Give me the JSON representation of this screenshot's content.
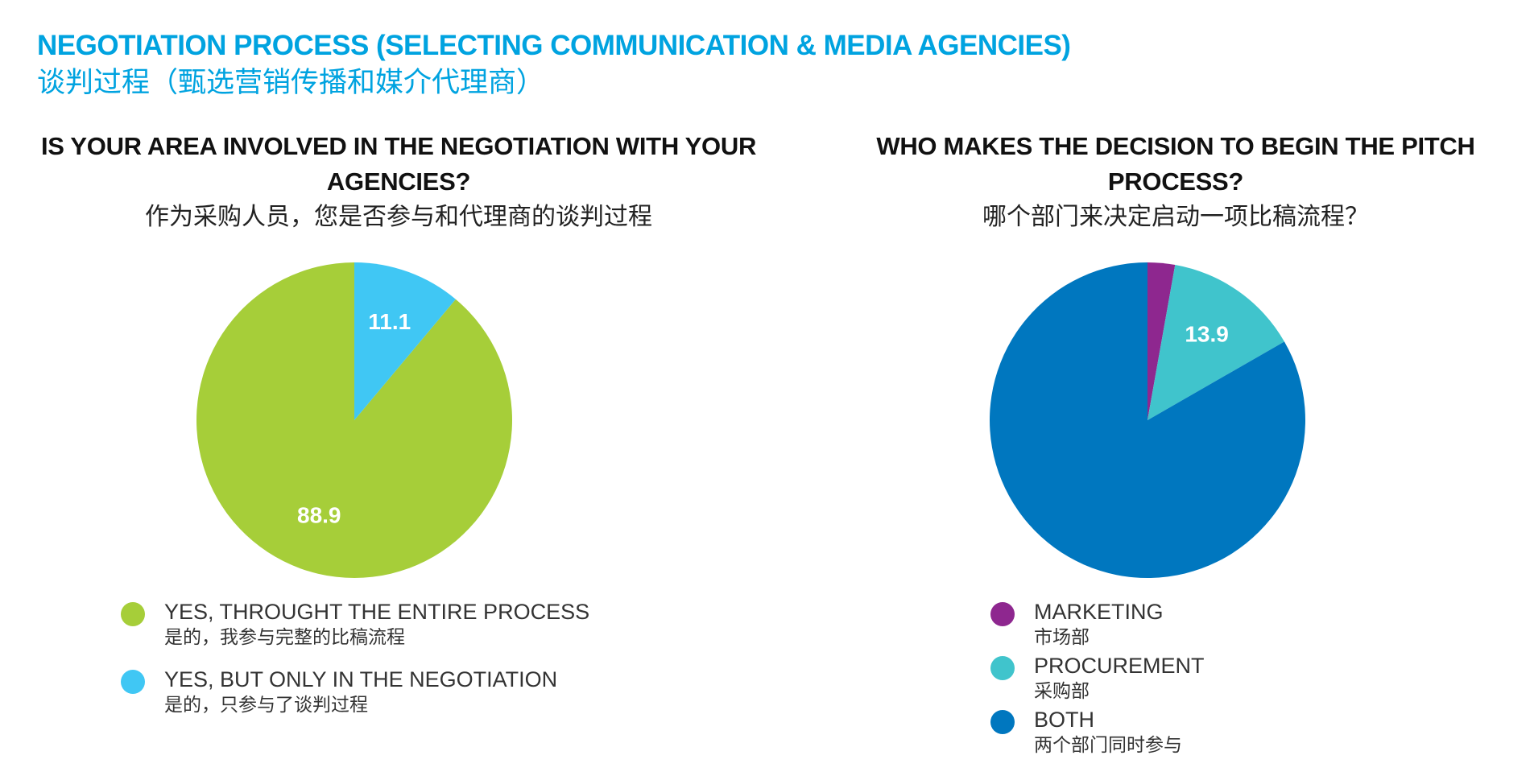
{
  "header": {
    "title": "NEGOTIATION PROCESS (SELECTING COMMUNICATION & MEDIA AGENCIES)",
    "subtitle": "谈判过程（甄选营销传播和媒介代理商）"
  },
  "colors": {
    "header": "#00a3e0",
    "green": "#a6ce39",
    "light_blue": "#40c7f4",
    "purple": "#8e278f",
    "teal": "#40c4cc",
    "blue": "#0077bf"
  },
  "chart_data": [
    {
      "type": "pie",
      "title": "IS YOUR AREA INVOLVED IN THE NEGOTIATION WITH YOUR AGENCIES?",
      "subtitle": "作为采购人员，您是否参与和代理商的谈判过程",
      "start_angle_deg": 0,
      "direction": "counterclockwise",
      "slices": [
        {
          "name": "YES, THROUGHT THE ENTIRE PROCESS",
          "name_zh": "是的，我参与完整的比稿流程",
          "value": 88.9,
          "label": "88.9",
          "color": "#a6ce39"
        },
        {
          "name": "YES, BUT ONLY IN THE NEGOTIATION",
          "name_zh": "是的，只参与了谈判过程",
          "value": 11.1,
          "label": "11.1",
          "color": "#40c7f4"
        }
      ]
    },
    {
      "type": "pie",
      "title": "WHO MAKES THE DECISION TO BEGIN THE PITCH PROCESS?",
      "subtitle": "哪个部门来决定启动一项比稿流程？",
      "start_angle_deg": 0,
      "direction": "clockwise",
      "slices": [
        {
          "name": "MARKETING",
          "name_zh": "市场部",
          "value": 2.8,
          "label": "",
          "color": "#8e278f"
        },
        {
          "name": "PROCUREMENT",
          "name_zh": "采购部",
          "value": 13.9,
          "label": "13.9",
          "color": "#40c4cc"
        },
        {
          "name": "BOTH",
          "name_zh": "两个部门同时参与",
          "value": 83.3,
          "label": "",
          "color": "#0077bf"
        }
      ]
    }
  ]
}
